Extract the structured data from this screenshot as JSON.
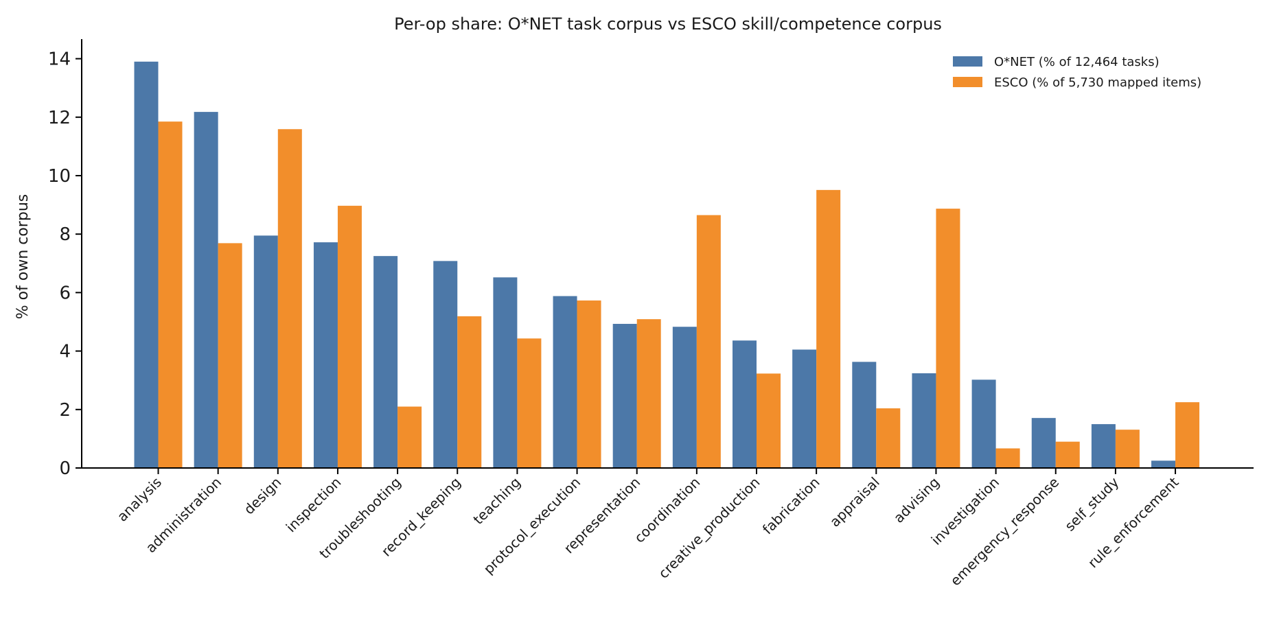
{
  "chart_data": {
    "type": "bar",
    "title": "Per-op share: O*NET task corpus vs ESCO skill/competence corpus",
    "xlabel": "",
    "ylabel": "% of own corpus",
    "ylim": [
      0,
      14.6
    ],
    "yticks": [
      0,
      2,
      4,
      6,
      8,
      10,
      12,
      14
    ],
    "grid": false,
    "legend_position": "top-right",
    "categories": [
      "analysis",
      "administration",
      "design",
      "inspection",
      "troubleshooting",
      "record_keeping",
      "teaching",
      "protocol_execution",
      "representation",
      "coordination",
      "creative_production",
      "fabrication",
      "appraisal",
      "advising",
      "investigation",
      "emergency_response",
      "self_study",
      "rule_enforcement"
    ],
    "series": [
      {
        "name": "O*NET (% of 12,464 tasks)",
        "color": "#4c78a8",
        "values": [
          13.9,
          12.18,
          7.95,
          7.72,
          7.25,
          7.08,
          6.52,
          5.88,
          4.93,
          4.83,
          4.36,
          4.05,
          3.63,
          3.24,
          3.02,
          1.71,
          1.5,
          0.25
        ]
      },
      {
        "name": "ESCO (% of 5,730 mapped items)",
        "color": "#f28e2b",
        "values": [
          11.85,
          7.69,
          11.59,
          8.97,
          2.1,
          5.19,
          4.43,
          5.73,
          5.09,
          8.65,
          3.23,
          9.51,
          2.04,
          8.87,
          0.67,
          0.9,
          1.31,
          2.25
        ]
      }
    ]
  }
}
